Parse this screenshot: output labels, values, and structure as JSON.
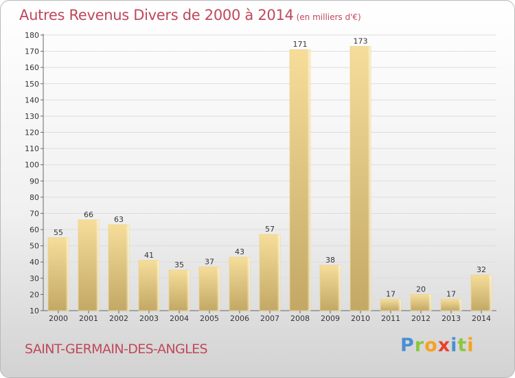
{
  "header": {
    "title": "Autres Revenus Divers de 2000 à 2014",
    "unit": "(en milliers d'€)"
  },
  "commune": "SAINT-GERMAIN-DES-ANGLES",
  "brand": {
    "name": "Proxiti",
    "letters": [
      "P",
      "r",
      "o",
      "x",
      "i",
      "t",
      "i"
    ]
  },
  "colors": {
    "title": "#c0475a",
    "bar_light": "#f6dd9a",
    "bar_dark": "#c3a865",
    "grid": "#dddddd"
  },
  "chart_data": {
    "type": "bar",
    "title": "Autres Revenus Divers de 2000 à 2014",
    "xlabel": "",
    "ylabel": "",
    "categories": [
      "2000",
      "2001",
      "2002",
      "2003",
      "2004",
      "2005",
      "2006",
      "2007",
      "2008",
      "2009",
      "2010",
      "2011",
      "2012",
      "2013",
      "2014"
    ],
    "values": [
      55,
      66,
      63,
      41,
      35,
      37,
      43,
      57,
      171,
      38,
      173,
      17,
      20,
      17,
      32
    ],
    "ylim": [
      10,
      180
    ],
    "yticks": [
      10,
      20,
      30,
      40,
      50,
      60,
      70,
      80,
      90,
      100,
      110,
      120,
      130,
      140,
      150,
      160,
      170,
      180
    ],
    "grid": true,
    "data_labels": true
  }
}
